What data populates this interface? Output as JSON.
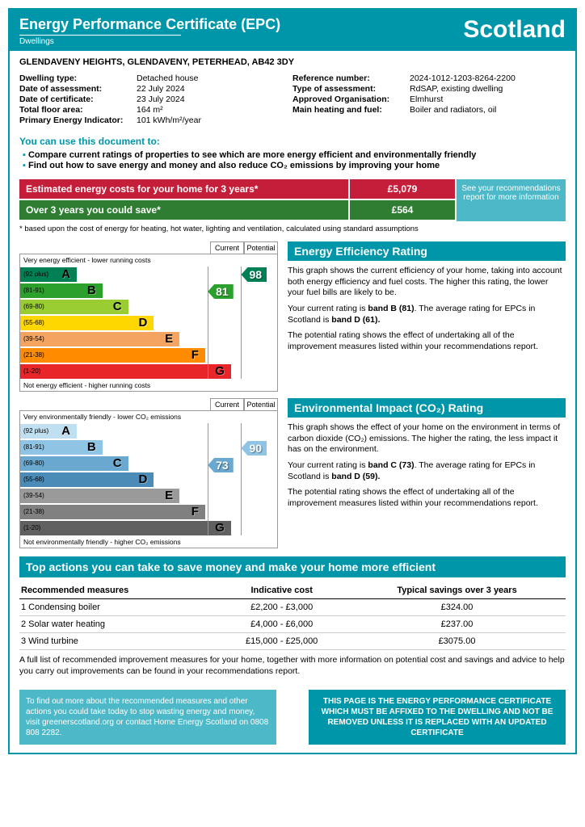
{
  "header": {
    "title": "Energy Performance Certificate (EPC)",
    "subtitle": "Dwellings",
    "region": "Scotland"
  },
  "address": "GLENDAVENY HEIGHTS, GLENDAVENY, PETERHEAD, AB42 3DY",
  "details_left": [
    {
      "label": "Dwelling type:",
      "value": "Detached house"
    },
    {
      "label": "Date of assessment:",
      "value": "22 July 2024"
    },
    {
      "label": "Date of certificate:",
      "value": "23 July 2024"
    },
    {
      "label": "Total floor area:",
      "value": "164 m²"
    },
    {
      "label": "Primary Energy Indicator:",
      "value": "101 kWh/m²/year"
    }
  ],
  "details_right": [
    {
      "label": "Reference number:",
      "value": "2024-1012-1203-8264-2200"
    },
    {
      "label": "Type of assessment:",
      "value": "RdSAP, existing dwelling"
    },
    {
      "label": "Approved Organisation:",
      "value": "Elmhurst"
    },
    {
      "label": "Main heating and fuel:",
      "value": "Boiler and radiators, oil"
    }
  ],
  "use": {
    "title": "You can use this document to:",
    "bullets": [
      "Compare current ratings of properties to see which are more energy efficient and environmentally friendly",
      "Find out how to save energy and money and also reduce CO₂ emissions by improving your home"
    ]
  },
  "costs": {
    "row1_label": "Estimated energy costs for your home for 3 years*",
    "row1_value": "£5,079",
    "row2_label": "Over 3 years you could save*",
    "row2_value": "£564",
    "side": "See your recommendations report for more information",
    "note": "* based upon the cost of energy for heating, hot water, lighting and ventilation, calculated using standard assumptions"
  },
  "eer_chart": {
    "top_label": "Very energy efficient - lower running costs",
    "bottom_label": "Not energy efficient - higher running costs",
    "col_current": "Current",
    "col_potential": "Potential",
    "bands": [
      {
        "range": "(92 plus)",
        "letter": "A",
        "color": "#008054",
        "width_pct": 22
      },
      {
        "range": "(81-91)",
        "letter": "B",
        "color": "#2ca02c",
        "width_pct": 32
      },
      {
        "range": "(69-80)",
        "letter": "C",
        "color": "#9acd32",
        "width_pct": 42
      },
      {
        "range": "(55-68)",
        "letter": "D",
        "color": "#ffd700",
        "width_pct": 52
      },
      {
        "range": "(39-54)",
        "letter": "E",
        "color": "#f4a460",
        "width_pct": 62
      },
      {
        "range": "(21-38)",
        "letter": "F",
        "color": "#ff8c00",
        "width_pct": 72
      },
      {
        "range": "(1-20)",
        "letter": "G",
        "color": "#e8262a",
        "width_pct": 82
      }
    ],
    "current": {
      "value": "81",
      "band_index": 1,
      "color": "#2ca02c",
      "left_pct": 73
    },
    "potential": {
      "value": "98",
      "band_index": 0,
      "color": "#008054",
      "left_pct": 86
    }
  },
  "eer_text": {
    "title": "Energy Efficiency Rating",
    "p1": "This graph shows the current efficiency of your home, taking into account both energy efficiency and fuel costs. The higher this rating, the lower your fuel bills are likely to be.",
    "p2_pre": "Your current rating is ",
    "p2_b1": "band B (81)",
    "p2_mid": ". The average rating for EPCs in Scotland is ",
    "p2_b2": "band D (61).",
    "p3": "The potential rating shows the effect of undertaking all of the improvement measures listed within your recommendations report."
  },
  "eir_chart": {
    "top_label": "Very environmentally friendly - lower CO₂ emissions",
    "bottom_label": "Not environmentally friendly - higher CO₂ emissions",
    "col_current": "Current",
    "col_potential": "Potential",
    "bands": [
      {
        "range": "(92 plus)",
        "letter": "A",
        "color": "#c0dff0",
        "width_pct": 22
      },
      {
        "range": "(81-91)",
        "letter": "B",
        "color": "#90c4e4",
        "width_pct": 32
      },
      {
        "range": "(69-80)",
        "letter": "C",
        "color": "#6ba8d0",
        "width_pct": 42
      },
      {
        "range": "(55-68)",
        "letter": "D",
        "color": "#4a8bb8",
        "width_pct": 52
      },
      {
        "range": "(39-54)",
        "letter": "E",
        "color": "#9a9a9a",
        "width_pct": 62
      },
      {
        "range": "(21-38)",
        "letter": "F",
        "color": "#808080",
        "width_pct": 72
      },
      {
        "range": "(1-20)",
        "letter": "G",
        "color": "#606060",
        "width_pct": 82
      }
    ],
    "current": {
      "value": "73",
      "band_index": 2,
      "color": "#6ba8d0",
      "left_pct": 73
    },
    "potential": {
      "value": "90",
      "band_index": 1,
      "color": "#90c4e4",
      "left_pct": 86
    }
  },
  "eir_text": {
    "title": "Environmental Impact (CO₂) Rating",
    "p1": "This graph shows the effect of your home on the environment in terms of carbon dioxide (CO₂) emissions. The higher the rating, the less impact it has on the environment.",
    "p2_pre": "Your current rating is ",
    "p2_b1": "band C (73)",
    "p2_mid": ". The average rating for EPCs in Scotland is ",
    "p2_b2": "band D (59).",
    "p3": "The potential rating shows the effect of undertaking all of the improvement measures listed within your recommendations report."
  },
  "actions": {
    "title": "Top actions you can take to save money and make your home more efficient",
    "headers": [
      "Recommended measures",
      "Indicative cost",
      "Typical savings over 3 years"
    ],
    "rows": [
      [
        "1 Condensing boiler",
        "£2,200 - £3,000",
        "£324.00"
      ],
      [
        "2 Solar water heating",
        "£4,000 - £6,000",
        "£237.00"
      ],
      [
        "3 Wind turbine",
        "£15,000 - £25,000",
        "£3075.00"
      ]
    ],
    "note": "A full list of recommended improvement measures for your home, together with more information on potential cost and savings and advice to help you carry out improvements can be found in your recommendations report."
  },
  "footer": {
    "left": "To find out more about the recommended measures and other actions you could take today to stop wasting energy and money, visit greenerscotland.org or contact Home Energy Scotland on 0808 808 2282.",
    "right": "THIS PAGE IS THE ENERGY PERFORMANCE CERTIFICATE WHICH MUST BE AFFIXED TO THE DWELLING AND NOT BE REMOVED UNLESS IT IS REPLACED WITH AN UPDATED CERTIFICATE"
  }
}
